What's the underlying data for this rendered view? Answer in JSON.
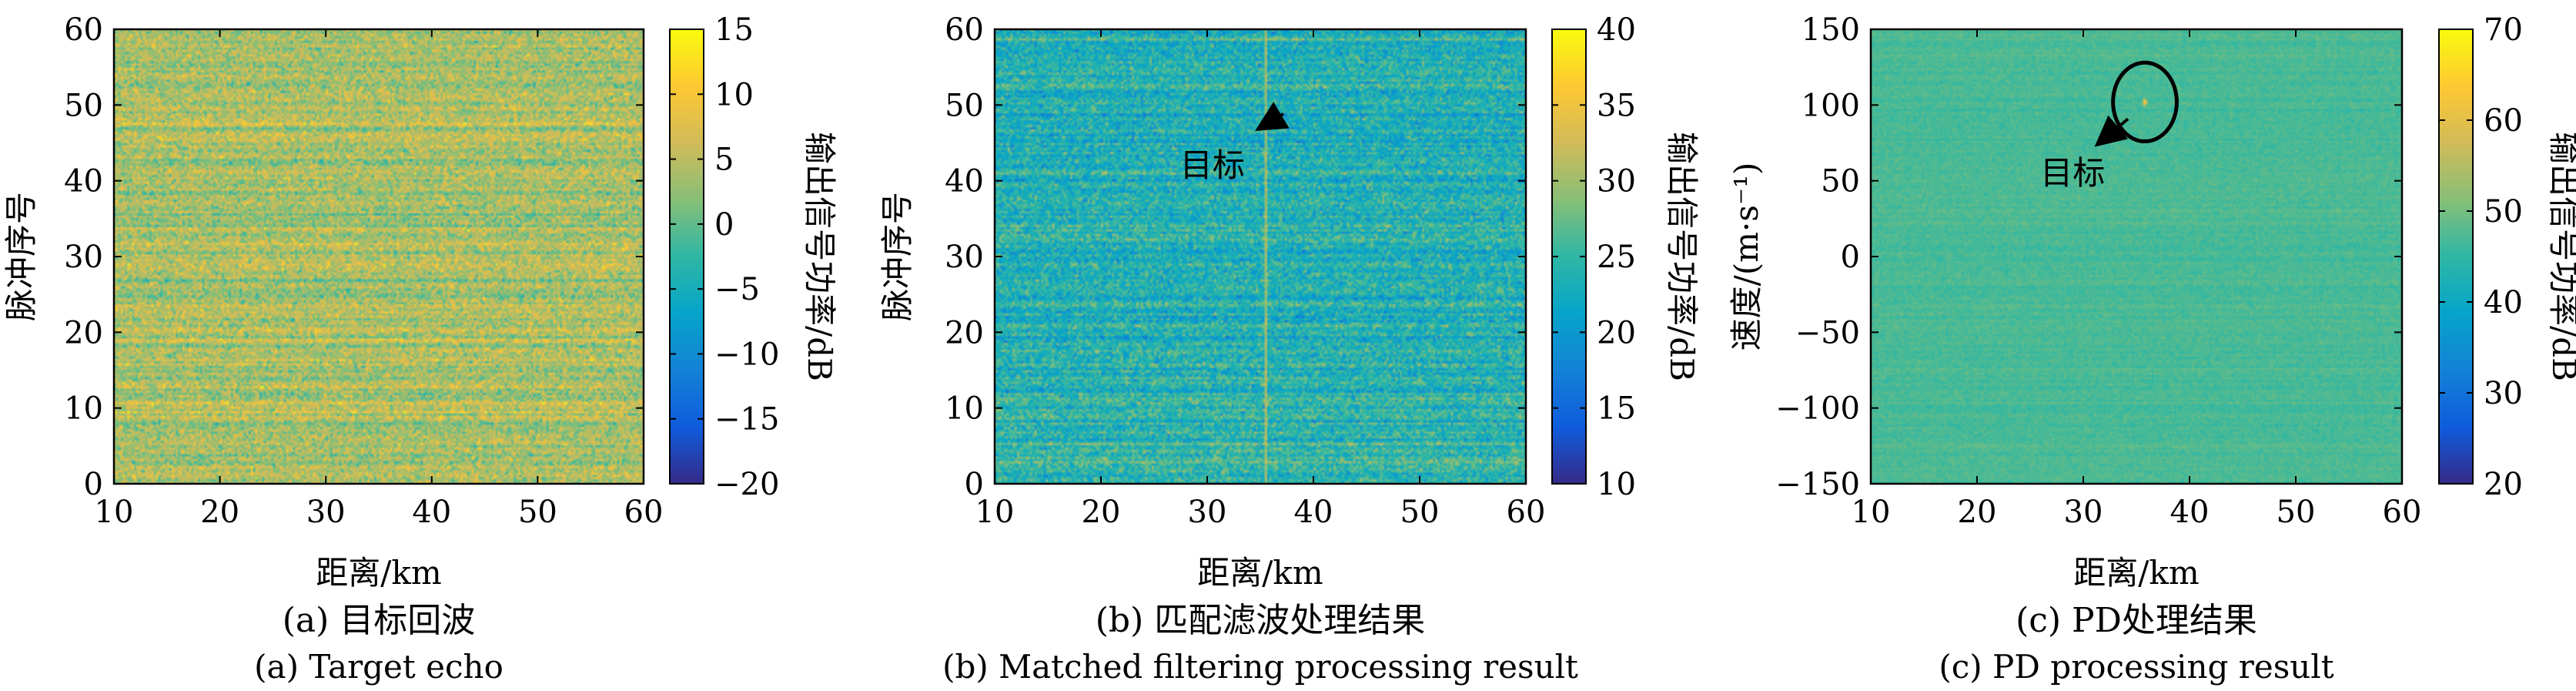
{
  "chart_data": [
    {
      "type": "heatmap",
      "caption_cn": "(a) 目标回波",
      "caption_en": "(a) Target echo",
      "xlabel": "距离/km",
      "ylabel": "脉冲序号",
      "colorbar_label": "输出信号功率/dB",
      "xlim": [
        10,
        60
      ],
      "ylim": [
        0,
        60
      ],
      "clim": [
        -20,
        15
      ],
      "x_ticks": [
        "10",
        "20",
        "30",
        "40",
        "50",
        "60"
      ],
      "y_ticks": [
        "0",
        "10",
        "20",
        "30",
        "40",
        "50",
        "60"
      ],
      "colorbar_ticks": [
        "−20",
        "−15",
        "−10",
        "−5",
        "0",
        "5",
        "10",
        "15"
      ],
      "field": {
        "background_db": 4,
        "noise_db": 4.5,
        "target_range_km": null,
        "target_db": null
      }
    },
    {
      "type": "heatmap",
      "caption_cn": "(b) 匹配滤波处理结果",
      "caption_en": "(b) Matched filtering processing result",
      "xlabel": "距离/km",
      "ylabel": "脉冲序号",
      "colorbar_label": "输出信号功率/dB",
      "xlim": [
        10,
        60
      ],
      "ylim": [
        0,
        60
      ],
      "clim": [
        10,
        40
      ],
      "x_ticks": [
        "10",
        "20",
        "30",
        "40",
        "50",
        "60"
      ],
      "y_ticks": [
        "0",
        "10",
        "20",
        "30",
        "40",
        "50",
        "60"
      ],
      "colorbar_ticks": [
        "10",
        "15",
        "20",
        "25",
        "30",
        "35",
        "40"
      ],
      "annotation": {
        "text": "目标",
        "x": 30.5,
        "y": 42,
        "arrow_to": [
          35,
          47
        ]
      },
      "field": {
        "background_db": 24,
        "noise_db": 4,
        "target_range_km": 35.5,
        "target_db": 31
      }
    },
    {
      "type": "heatmap",
      "caption_cn": "(c) PD处理结果",
      "caption_en": "(c) PD processing result",
      "xlabel": "距离/km",
      "ylabel": "速度/(m·s⁻¹)",
      "colorbar_label": "输出信号功率/dB",
      "xlim": [
        10,
        60
      ],
      "ylim": [
        -150,
        150
      ],
      "clim": [
        20,
        70
      ],
      "x_ticks": [
        "10",
        "20",
        "30",
        "40",
        "50",
        "60"
      ],
      "y_ticks": [
        "−150",
        "−100",
        "−50",
        "0",
        "50",
        "100",
        "150"
      ],
      "colorbar_ticks": [
        "20",
        "30",
        "40",
        "50",
        "60",
        "70"
      ],
      "annotation": {
        "text": "目标",
        "x": 29,
        "y": 55,
        "arrow_to": [
          31.5,
          75
        ],
        "circle_center": [
          35.8,
          102
        ],
        "circle_rx_km": 3,
        "circle_ry": 26
      },
      "field": {
        "background_db": 47,
        "noise_db": 1.5,
        "target_range_km": 35.8,
        "target_velocity": 102,
        "target_db": 68
      }
    }
  ],
  "colormap": [
    "#352a87",
    "#0f5cdd",
    "#1481d6",
    "#06a4ca",
    "#2eb7a4",
    "#87bf77",
    "#d1bb59",
    "#fec832",
    "#f9fb0e"
  ]
}
